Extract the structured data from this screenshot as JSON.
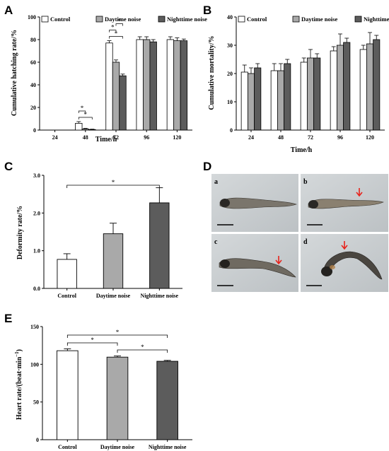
{
  "figure": {
    "panels": {
      "A": {
        "letter": "A"
      },
      "B": {
        "letter": "B"
      },
      "C": {
        "letter": "C"
      },
      "D": {
        "letter": "D",
        "photo_letters": [
          "a",
          "b",
          "c",
          "d"
        ]
      },
      "E": {
        "letter": "E"
      }
    },
    "colors": {
      "control": "#ffffff",
      "daytime": "#a9a9a9",
      "nighttime": "#5c5c5c",
      "arrow": "#e8231c",
      "photo_bg": "#c9cdd0"
    }
  },
  "chart_data": [
    {
      "id": "A",
      "type": "bar",
      "title": "",
      "xlabel": "Time/h",
      "ylabel": "Cumulative hatching rate/%",
      "categories": [
        "24",
        "48",
        "72",
        "96",
        "120"
      ],
      "ylim": [
        0,
        100
      ],
      "yticks": [
        0,
        20,
        40,
        60,
        80,
        100
      ],
      "legend_position": "top",
      "series": [
        {
          "name": "Control",
          "values": [
            0,
            6,
            77,
            80,
            80
          ],
          "errors": [
            0,
            1.5,
            2,
            2.5,
            2.5
          ]
        },
        {
          "name": "Daytime noise",
          "values": [
            0,
            1,
            60,
            80,
            79
          ],
          "errors": [
            0,
            0.5,
            2,
            2.5,
            2.5
          ]
        },
        {
          "name": "Nighttime noise",
          "values": [
            0,
            0.5,
            48,
            78,
            79
          ],
          "errors": [
            0,
            0.3,
            1.5,
            2,
            1.5
          ]
        }
      ],
      "significance": [
        {
          "category": "48",
          "from": 0,
          "to": 2,
          "label": "*"
        },
        {
          "category": "48",
          "from": 0,
          "to": 1,
          "label": "*"
        },
        {
          "category": "72",
          "from": 0,
          "to": 2,
          "label": "*"
        },
        {
          "category": "72",
          "from": 0,
          "to": 1,
          "label": "*"
        },
        {
          "category": "72",
          "from": 1,
          "to": 2,
          "label": "*"
        }
      ]
    },
    {
      "id": "B",
      "type": "bar",
      "title": "",
      "xlabel": "Time/h",
      "ylabel": "Cumulative mortality/%",
      "categories": [
        "24",
        "48",
        "72",
        "96",
        "120"
      ],
      "ylim": [
        0,
        40
      ],
      "yticks": [
        0,
        10,
        20,
        30,
        40
      ],
      "legend_position": "top",
      "series": [
        {
          "name": "Control",
          "values": [
            20.5,
            21,
            24,
            28,
            28.5
          ],
          "errors": [
            2.5,
            2.5,
            1.5,
            1.5,
            1.5
          ]
        },
        {
          "name": "Daytime noise",
          "values": [
            20,
            21,
            25.5,
            30,
            30.5
          ],
          "errors": [
            2,
            2.5,
            3,
            4,
            4
          ]
        },
        {
          "name": "Nighttime noise",
          "values": [
            22,
            23.5,
            25.5,
            31,
            32
          ],
          "errors": [
            1.5,
            1.5,
            1.5,
            1.5,
            1.5
          ]
        }
      ]
    },
    {
      "id": "C",
      "type": "bar",
      "title": "",
      "xlabel": "",
      "ylabel": "Deformity rate/%",
      "categories": [
        "Control",
        "Daytime noise",
        "Nighttime noise"
      ],
      "ylim": [
        0,
        3.0
      ],
      "yticks": [
        "0.0",
        "1.0",
        "2.0",
        "3.0"
      ],
      "values": [
        0.77,
        1.45,
        2.27
      ],
      "errors": [
        0.15,
        0.28,
        0.4
      ],
      "significance": [
        {
          "from": 0,
          "to": 2,
          "label": "*"
        }
      ]
    },
    {
      "id": "E",
      "type": "bar",
      "title": "",
      "xlabel": "",
      "ylabel": "Heart rate/(beat·min",
      "ylabel_sup": "−1",
      "ylabel_end": ")",
      "categories": [
        "Control",
        "Daytime noise",
        "Nighttime noise"
      ],
      "ylim": [
        0,
        150
      ],
      "yticks": [
        0,
        50,
        100,
        150
      ],
      "values": [
        118,
        109.5,
        104
      ],
      "errors": [
        2.5,
        1.5,
        1.2
      ],
      "significance": [
        {
          "from": 0,
          "to": 1,
          "label": "*"
        },
        {
          "from": 1,
          "to": 2,
          "label": "*"
        },
        {
          "from": 0,
          "to": 2,
          "label": "*"
        }
      ]
    }
  ]
}
